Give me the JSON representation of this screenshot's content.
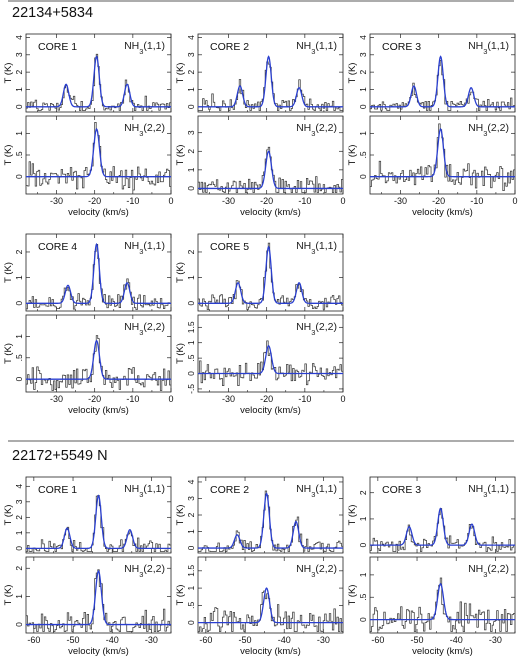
{
  "sections": [
    {
      "title": "22134+5834"
    },
    {
      "title": "22172+5549 N"
    }
  ],
  "chart_data": [
    {
      "type": "line",
      "source": "22134+5834",
      "cores": [
        {
          "name": "CORE 1",
          "transitions": [
            {
              "label": "NH3(1,1)",
              "ylim": [
                -0.3,
                4.2
              ],
              "yticks": [
                0,
                1,
                2,
                3,
                4
              ],
              "peaks": [
                {
                  "v": -27.5,
                  "T": 1.3
                },
                {
                  "v": -19.5,
                  "T": 2.9
                },
                {
                  "v": -11.5,
                  "T": 1.3
                }
              ]
            },
            {
              "label": "NH3(2,2)",
              "ylim": [
                -0.4,
                1.4
              ],
              "yticks": [
                0,
                0.5,
                1
              ],
              "peaks": [
                {
                  "v": -19.5,
                  "T": 1.1
                }
              ]
            }
          ]
        },
        {
          "name": "CORE 2",
          "transitions": [
            {
              "label": "NH3(1,1)",
              "ylim": [
                -0.3,
                4.2
              ],
              "yticks": [
                0,
                1,
                2,
                3,
                4
              ],
              "peaks": [
                {
                  "v": -27.0,
                  "T": 1.2
                },
                {
                  "v": -19.5,
                  "T": 2.9
                },
                {
                  "v": -11.5,
                  "T": 1.1
                }
              ]
            },
            {
              "label": "NH3(2,2)",
              "ylim": [
                -0.3,
                3.9
              ],
              "yticks": [
                0,
                1,
                2,
                3
              ],
              "peaks": [
                {
                  "v": -19.5,
                  "T": 2.0
                }
              ]
            }
          ]
        },
        {
          "name": "CORE 3",
          "transitions": [
            {
              "label": "NH3(1,1)",
              "ylim": [
                -0.3,
                4.2
              ],
              "yticks": [
                0,
                1,
                2,
                3,
                4
              ],
              "peaks": [
                {
                  "v": -26.5,
                  "T": 1.2
                },
                {
                  "v": -19.5,
                  "T": 2.9
                },
                {
                  "v": -11.5,
                  "T": 1.1
                }
              ]
            },
            {
              "label": "NH3(2,2)",
              "ylim": [
                -0.4,
                1.4
              ],
              "yticks": [
                0,
                0.5,
                1
              ],
              "peaks": [
                {
                  "v": -19.5,
                  "T": 1.1
                }
              ]
            }
          ]
        },
        {
          "name": "CORE 4",
          "transitions": [
            {
              "label": "NH3(1,1)",
              "ylim": [
                -0.3,
                2.7
              ],
              "yticks": [
                0,
                1,
                2
              ],
              "peaks": [
                {
                  "v": -27.0,
                  "T": 0.7
                },
                {
                  "v": -19.5,
                  "T": 2.3
                },
                {
                  "v": -11.5,
                  "T": 0.8
                }
              ]
            },
            {
              "label": "NH3(2,2)",
              "ylim": [
                -0.3,
                1.5
              ],
              "yticks": [
                0,
                0.5,
                1
              ],
              "peaks": [
                {
                  "v": -19.5,
                  "T": 0.9
                }
              ]
            }
          ]
        },
        {
          "name": "CORE 5",
          "transitions": [
            {
              "label": "NH3(1,1)",
              "ylim": [
                -0.3,
                2.7
              ],
              "yticks": [
                0,
                1,
                2
              ],
              "peaks": [
                {
                  "v": -27.5,
                  "T": 0.8
                },
                {
                  "v": -19.5,
                  "T": 2.2
                },
                {
                  "v": -11.5,
                  "T": 0.8
                }
              ]
            },
            {
              "label": "NH3(2,2)",
              "ylim": [
                -0.6,
                1.9
              ],
              "yticks": [
                -0.5,
                0,
                0.5,
                1,
                1.5
              ],
              "peaks": [
                {
                  "v": -19.5,
                  "T": 0.9
                }
              ]
            }
          ]
        }
      ],
      "xlabel": "velocity (km/s)",
      "ylabel": "T (K)",
      "xlim": [
        -38,
        0
      ],
      "xticks": [
        -30,
        -20,
        -10,
        0
      ]
    },
    {
      "type": "line",
      "source": "22172+5549 N",
      "cores": [
        {
          "name": "CORE 1",
          "transitions": [
            {
              "label": "NH3(1,1)",
              "ylim": [
                -0.3,
                4.6
              ],
              "yticks": [
                0,
                1,
                2,
                3,
                4
              ],
              "peaks": [
                {
                  "v": -51.5,
                  "T": 1.3
                },
                {
                  "v": -43.5,
                  "T": 3.4
                },
                {
                  "v": -35.5,
                  "T": 1.2
                }
              ]
            },
            {
              "label": "NH3(2,2)",
              "ylim": [
                -0.3,
                2.4
              ],
              "yticks": [
                0,
                1,
                2
              ],
              "peaks": [
                {
                  "v": -43.5,
                  "T": 1.9
                }
              ]
            }
          ]
        },
        {
          "name": "CORE 2",
          "transitions": [
            {
              "label": "NH3(1,1)",
              "ylim": [
                -0.3,
                4.3
              ],
              "yticks": [
                0,
                1,
                2,
                3,
                4
              ],
              "peaks": [
                {
                  "v": -52.0,
                  "T": 0.8
                },
                {
                  "v": -44.5,
                  "T": 3.3
                },
                {
                  "v": -37.0,
                  "T": 1.6
                }
              ]
            },
            {
              "label": "NH3(2,2)",
              "ylim": [
                -0.3,
                1.9
              ],
              "yticks": [
                0,
                0.5,
                1,
                1.5
              ],
              "peaks": [
                {
                  "v": -44.5,
                  "T": 1.0
                }
              ]
            }
          ]
        },
        {
          "name": "CORE 3",
          "transitions": [
            {
              "label": "NH3(1,1)",
              "ylim": [
                -0.3,
                2.6
              ],
              "yticks": [
                0,
                1,
                2
              ],
              "peaks": [
                {
                  "v": -52.0,
                  "T": 0.7
                },
                {
                  "v": -44.0,
                  "T": 1.4
                },
                {
                  "v": -36.0,
                  "T": 0.8
                }
              ]
            },
            {
              "label": "NH3(2,2)",
              "ylim": [
                -0.3,
                1.4
              ],
              "yticks": [
                0,
                0.5,
                1
              ],
              "peaks": [
                {
                  "v": -44.0,
                  "T": 0.8
                }
              ]
            }
          ]
        }
      ],
      "xlabel": "velocity (km/s)",
      "ylabel": "T (K)",
      "xlim": [
        -62,
        -25
      ],
      "xticks": [
        -60,
        -50,
        -40,
        -30
      ]
    }
  ],
  "colors": {
    "data": "#3a3a3a",
    "fit": "#2a3fd0",
    "axis": "#222222",
    "rule": "#222222"
  }
}
